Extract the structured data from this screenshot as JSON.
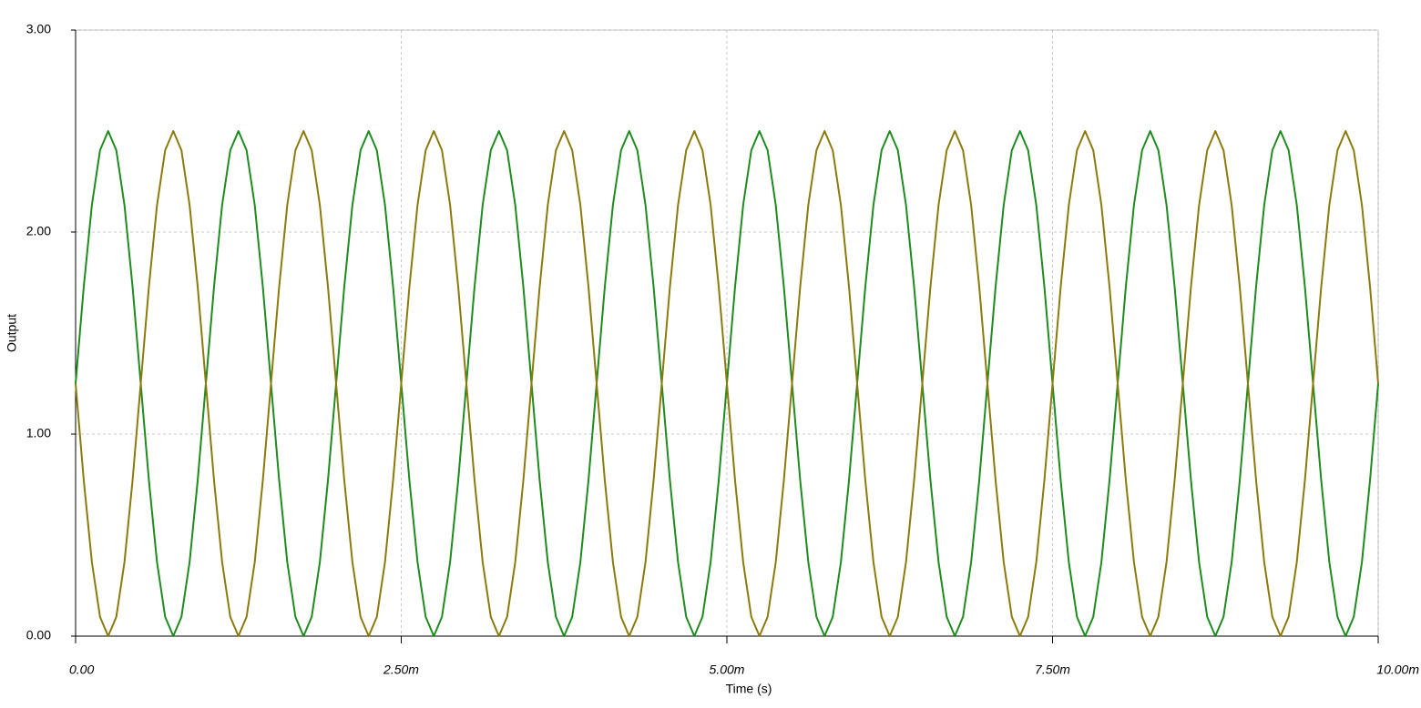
{
  "chart_data": {
    "type": "line",
    "x_label": "Time (s)",
    "y_label": "Output",
    "xlim": [
      0,
      0.01
    ],
    "ylim": [
      0,
      3
    ],
    "xticks": [
      {
        "value": 0,
        "label": "0.00"
      },
      {
        "value": 0.0025,
        "label": "2.50m"
      },
      {
        "value": 0.005,
        "label": "5.00m"
      },
      {
        "value": 0.0075,
        "label": "7.50m"
      },
      {
        "value": 0.01,
        "label": "10.00m"
      }
    ],
    "yticks": [
      {
        "value": 0,
        "label": "0.00"
      },
      {
        "value": 1,
        "label": "1.00"
      },
      {
        "value": 2,
        "label": "2.00"
      },
      {
        "value": 3,
        "label": "3.00"
      }
    ],
    "grid": true,
    "x": [
      0,
      6.25e-05,
      0.000125,
      0.0001875,
      0.00025,
      0.0003125,
      0.000375,
      0.0004375,
      0.0005,
      0.0005625,
      0.000625,
      0.0006875,
      0.00075,
      0.0008125,
      0.000875,
      0.0009375,
      0.001,
      0.0010625,
      0.001125,
      0.0011875,
      0.00125,
      0.0013125,
      0.001375,
      0.0014375,
      0.0015,
      0.0015625,
      0.001625,
      0.0016875,
      0.00175,
      0.0018125,
      0.001875,
      0.0019375,
      0.002,
      0.0020625,
      0.002125,
      0.0021875,
      0.00225,
      0.0023125,
      0.002375,
      0.0024375,
      0.0025,
      0.0025625,
      0.002625,
      0.0026875,
      0.00275,
      0.0028125,
      0.002875,
      0.0029375,
      0.003,
      0.0030625,
      0.003125,
      0.0031875,
      0.00325,
      0.0033125,
      0.003375,
      0.0034375,
      0.0035,
      0.0035625,
      0.003625,
      0.0036875,
      0.00375,
      0.0038125,
      0.003875,
      0.0039375,
      0.004,
      0.0040625,
      0.004125,
      0.0041875,
      0.00425,
      0.0043125,
      0.004375,
      0.0044375,
      0.0045,
      0.0045625,
      0.004625,
      0.0046875,
      0.00475,
      0.0048125,
      0.004875,
      0.0049375,
      0.005,
      0.0050625,
      0.005125,
      0.0051875,
      0.00525,
      0.0053125,
      0.005375,
      0.0054375,
      0.0055,
      0.0055625,
      0.005625,
      0.0056875,
      0.00575,
      0.0058125,
      0.005875,
      0.0059375,
      0.006,
      0.0060625,
      0.006125,
      0.0061875,
      0.00625,
      0.0063125,
      0.006375,
      0.0064375,
      0.0065,
      0.0065625,
      0.006625,
      0.0066875,
      0.00675,
      0.0068125,
      0.006875,
      0.0069375,
      0.007,
      0.0070625,
      0.007125,
      0.0071875,
      0.00725,
      0.0073125,
      0.007375,
      0.0074375,
      0.0075,
      0.0075625,
      0.007625,
      0.0076875,
      0.00775,
      0.0078125,
      0.007875,
      0.0079375,
      0.008,
      0.0080625,
      0.008125,
      0.0081875,
      0.00825,
      0.0083125,
      0.008375,
      0.0084375,
      0.0085,
      0.0085625,
      0.008625,
      0.0086875,
      0.00875,
      0.0088125,
      0.008875,
      0.0089375,
      0.009,
      0.0090625,
      0.009125,
      0.0091875,
      0.00925,
      0.0093125,
      0.009375,
      0.0094375,
      0.0095,
      0.0095625,
      0.009625,
      0.0096875,
      0.00975,
      0.0098125,
      0.009875,
      0.0099375,
      0.01
    ],
    "series": [
      {
        "color": "#1e8c1e",
        "values": [
          1.25,
          1.728,
          2.134,
          2.405,
          2.5,
          2.405,
          2.134,
          1.728,
          1.25,
          0.772,
          0.366,
          0.095,
          0,
          0.095,
          0.366,
          0.772,
          1.25,
          1.728,
          2.134,
          2.405,
          2.5,
          2.405,
          2.134,
          1.728,
          1.25,
          0.772,
          0.366,
          0.095,
          0,
          0.095,
          0.366,
          0.772,
          1.25,
          1.728,
          2.134,
          2.405,
          2.5,
          2.405,
          2.134,
          1.728,
          1.25,
          0.772,
          0.366,
          0.095,
          0,
          0.095,
          0.366,
          0.772,
          1.25,
          1.728,
          2.134,
          2.405,
          2.5,
          2.405,
          2.134,
          1.728,
          1.25,
          0.772,
          0.366,
          0.095,
          0,
          0.095,
          0.366,
          0.772,
          1.25,
          1.728,
          2.134,
          2.405,
          2.5,
          2.405,
          2.134,
          1.728,
          1.25,
          0.772,
          0.366,
          0.095,
          0,
          0.095,
          0.366,
          0.772,
          1.25,
          1.728,
          2.134,
          2.405,
          2.5,
          2.405,
          2.134,
          1.728,
          1.25,
          0.772,
          0.366,
          0.095,
          0,
          0.095,
          0.366,
          0.772,
          1.25,
          1.728,
          2.134,
          2.405,
          2.5,
          2.405,
          2.134,
          1.728,
          1.25,
          0.772,
          0.366,
          0.095,
          0,
          0.095,
          0.366,
          0.772,
          1.25,
          1.728,
          2.134,
          2.405,
          2.5,
          2.405,
          2.134,
          1.728,
          1.25,
          0.772,
          0.366,
          0.095,
          0,
          0.095,
          0.366,
          0.772,
          1.25,
          1.728,
          2.134,
          2.405,
          2.5,
          2.405,
          2.134,
          1.728,
          1.25,
          0.772,
          0.366,
          0.095,
          0,
          0.095,
          0.366,
          0.772,
          1.25,
          1.728,
          2.134,
          2.405,
          2.5,
          2.405,
          2.134,
          1.728,
          1.25,
          0.772,
          0.366,
          0.095,
          0,
          0.095,
          0.366,
          0.772,
          1.25
        ]
      },
      {
        "color": "#8c7a0c",
        "values": [
          1.25,
          0.772,
          0.366,
          0.095,
          0,
          0.095,
          0.366,
          0.772,
          1.25,
          1.728,
          2.134,
          2.405,
          2.5,
          2.405,
          2.134,
          1.728,
          1.25,
          0.772,
          0.366,
          0.095,
          0,
          0.095,
          0.366,
          0.772,
          1.25,
          1.728,
          2.134,
          2.405,
          2.5,
          2.405,
          2.134,
          1.728,
          1.25,
          0.772,
          0.366,
          0.095,
          0,
          0.095,
          0.366,
          0.772,
          1.25,
          1.728,
          2.134,
          2.405,
          2.5,
          2.405,
          2.134,
          1.728,
          1.25,
          0.772,
          0.366,
          0.095,
          0,
          0.095,
          0.366,
          0.772,
          1.25,
          1.728,
          2.134,
          2.405,
          2.5,
          2.405,
          2.134,
          1.728,
          1.25,
          0.772,
          0.366,
          0.095,
          0,
          0.095,
          0.366,
          0.772,
          1.25,
          1.728,
          2.134,
          2.405,
          2.5,
          2.405,
          2.134,
          1.728,
          1.25,
          0.772,
          0.366,
          0.095,
          0,
          0.095,
          0.366,
          0.772,
          1.25,
          1.728,
          2.134,
          2.405,
          2.5,
          2.405,
          2.134,
          1.728,
          1.25,
          0.772,
          0.366,
          0.095,
          0,
          0.095,
          0.366,
          0.772,
          1.25,
          1.728,
          2.134,
          2.405,
          2.5,
          2.405,
          2.134,
          1.728,
          1.25,
          0.772,
          0.366,
          0.095,
          0,
          0.095,
          0.366,
          0.772,
          1.25,
          1.728,
          2.134,
          2.405,
          2.5,
          2.405,
          2.134,
          1.728,
          1.25,
          0.772,
          0.366,
          0.095,
          0,
          0.095,
          0.366,
          0.772,
          1.25,
          1.728,
          2.134,
          2.405,
          2.5,
          2.405,
          2.134,
          1.728,
          1.25,
          0.772,
          0.366,
          0.095,
          0,
          0.095,
          0.366,
          0.772,
          1.25,
          1.728,
          2.134,
          2.405,
          2.5,
          2.405,
          2.134,
          1.728,
          1.25
        ]
      }
    ]
  }
}
